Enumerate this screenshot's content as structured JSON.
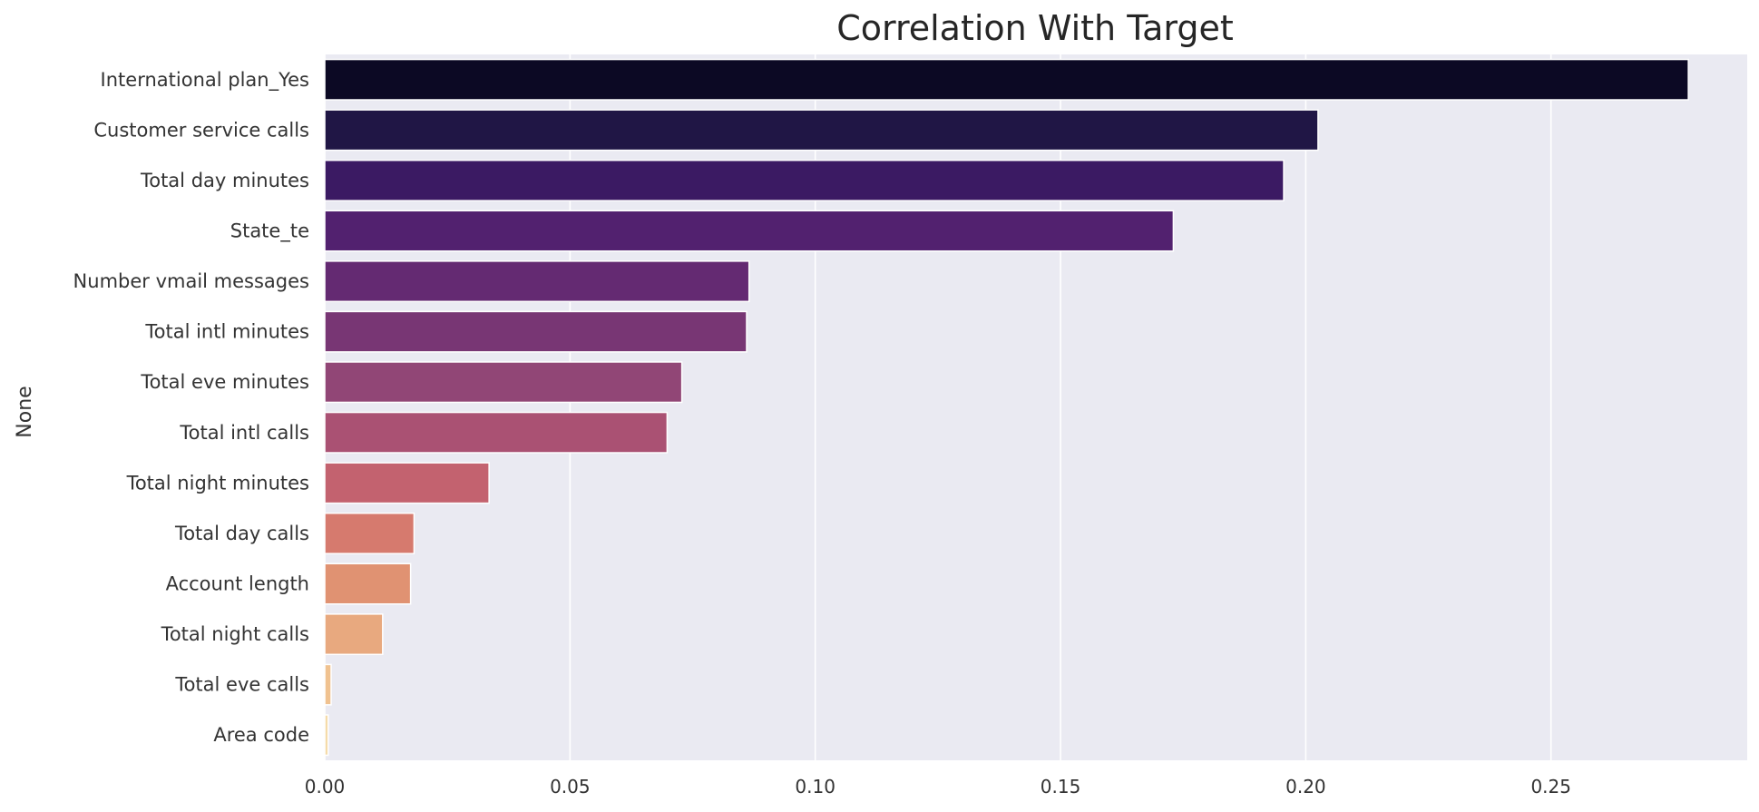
{
  "chart_data": {
    "type": "bar",
    "orientation": "horizontal",
    "title": "Correlation With Target",
    "xlabel": "",
    "ylabel": "None",
    "xlim": [
      0,
      0.29
    ],
    "grid": true,
    "xticks": [
      0.0,
      0.05,
      0.1,
      0.15,
      0.2,
      0.25
    ],
    "xtick_labels": [
      "0.00",
      "0.05",
      "0.10",
      "0.15",
      "0.20",
      "0.25"
    ],
    "categories": [
      "International plan_Yes",
      "Customer service calls",
      "Total day minutes",
      "State_te",
      "Number vmail messages",
      "Total intl minutes",
      "Total eve minutes",
      "Total intl calls",
      "Total night minutes",
      "Total day calls",
      "Account length",
      "Total night calls",
      "Total eve calls",
      "Area code"
    ],
    "values": [
      0.278,
      0.2025,
      0.1955,
      0.173,
      0.0865,
      0.086,
      0.0728,
      0.0698,
      0.0335,
      0.0182,
      0.0175,
      0.0118,
      0.0013,
      0.0007
    ],
    "colors": [
      "#0c0924",
      "#201645",
      "#3b1a63",
      "#52216f",
      "#642a72",
      "#783674",
      "#914676",
      "#aa5173",
      "#c3626f",
      "#d67a6e",
      "#e09272",
      "#e8a97f",
      "#f0c290",
      "#f5dba9"
    ]
  }
}
